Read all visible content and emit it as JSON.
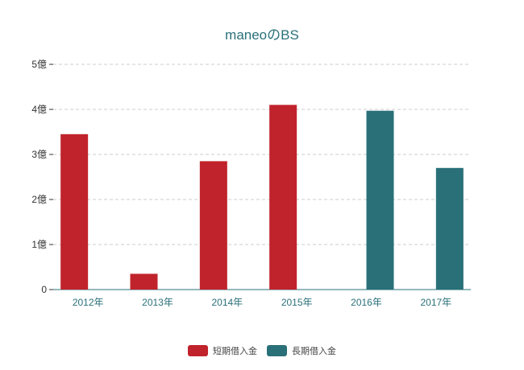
{
  "chart_data": {
    "type": "bar",
    "title": "maneoのBS",
    "xlabel": "",
    "ylabel": "",
    "categories": [
      "2012年",
      "2013年",
      "2014年",
      "2015年",
      "2016年",
      "2017年"
    ],
    "y_ticks": [
      "0",
      "1億",
      "2億",
      "3億",
      "4億",
      "5億"
    ],
    "ylim": [
      0,
      5
    ],
    "grid": true,
    "legend_position": "bottom",
    "series": [
      {
        "name": "短期借入金",
        "color": "#c0232c",
        "values": [
          3.45,
          0.35,
          2.85,
          4.1,
          null,
          null
        ]
      },
      {
        "name": "長期借入金",
        "color": "#2a7079",
        "values": [
          null,
          null,
          null,
          null,
          3.97,
          2.7
        ]
      }
    ]
  },
  "colors": {
    "title": "#2a7079",
    "tick_x": "#2a7079",
    "tick_y": "#333333",
    "grid": "#cccccc",
    "axis": "#2a7079"
  }
}
